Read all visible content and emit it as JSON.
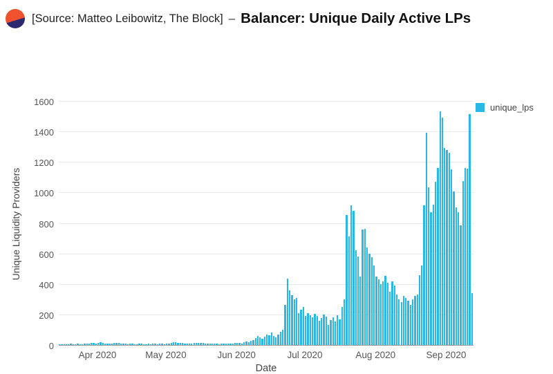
{
  "header": {
    "source_text": "[Source: Matteo Leibowitz, The Block]",
    "separator": "–",
    "title": "Balancer: Unique Daily Active LPs",
    "logo_colors": {
      "top": "#f0512f",
      "bottom": "#2c2a6e"
    }
  },
  "chart_data": {
    "type": "bar",
    "title": "Balancer: Unique Daily Active LPs",
    "xlabel": "Date",
    "ylabel": "Unique Liquidity Providers",
    "ylim": [
      0,
      1600
    ],
    "yticks": [
      0,
      200,
      400,
      600,
      800,
      1000,
      1200,
      1400,
      1600
    ],
    "grid": "horizontal-only",
    "legend_position": "top-right",
    "x_range_note": "daily bars, mid-March 2020 to mid-September 2020",
    "xticks": [
      {
        "label": "Apr 2020",
        "index": 17
      },
      {
        "label": "May 2020",
        "index": 47
      },
      {
        "label": "Jun 2020",
        "index": 78
      },
      {
        "label": "Jul 2020",
        "index": 108
      },
      {
        "label": "Aug 2020",
        "index": 139
      },
      {
        "label": "Sep 2020",
        "index": 170
      }
    ],
    "series": [
      {
        "name": "unique_lps",
        "color": "#29b7e5",
        "values": [
          4,
          5,
          6,
          4,
          5,
          7,
          5,
          6,
          8,
          6,
          5,
          7,
          9,
          8,
          12,
          14,
          10,
          15,
          18,
          12,
          9,
          7,
          8,
          10,
          12,
          15,
          13,
          10,
          8,
          7,
          6,
          8,
          7,
          5,
          6,
          7,
          8,
          6,
          5,
          7,
          6,
          8,
          7,
          6,
          8,
          7,
          6,
          8,
          10,
          14,
          16,
          18,
          15,
          12,
          14,
          10,
          8,
          7,
          9,
          12,
          14,
          13,
          15,
          12,
          10,
          8,
          7,
          9,
          8,
          7,
          6,
          8,
          10,
          9,
          7,
          8,
          10,
          12,
          12,
          15,
          10,
          18,
          22,
          16,
          25,
          30,
          45,
          60,
          50,
          40,
          55,
          70,
          65,
          80,
          60,
          50,
          70,
          85,
          100,
          265,
          437,
          360,
          325,
          300,
          310,
          210,
          230,
          250,
          190,
          210,
          195,
          180,
          205,
          190,
          160,
          175,
          200,
          185,
          130,
          165,
          180,
          155,
          195,
          170,
          250,
          300,
          850,
          710,
          915,
          880,
          620,
          580,
          450,
          755,
          760,
          640,
          600,
          575,
          520,
          450,
          430,
          400,
          415,
          455,
          410,
          350,
          415,
          390,
          330,
          300,
          280,
          320,
          310,
          290,
          265,
          300,
          320,
          330,
          460,
          520,
          915,
          1390,
          1035,
          870,
          920,
          1070,
          1160,
          1530,
          1490,
          1290,
          1280,
          1260,
          1150,
          1005,
          900,
          870,
          785,
          1075,
          1160,
          1155,
          1515,
          340
        ]
      }
    ]
  }
}
